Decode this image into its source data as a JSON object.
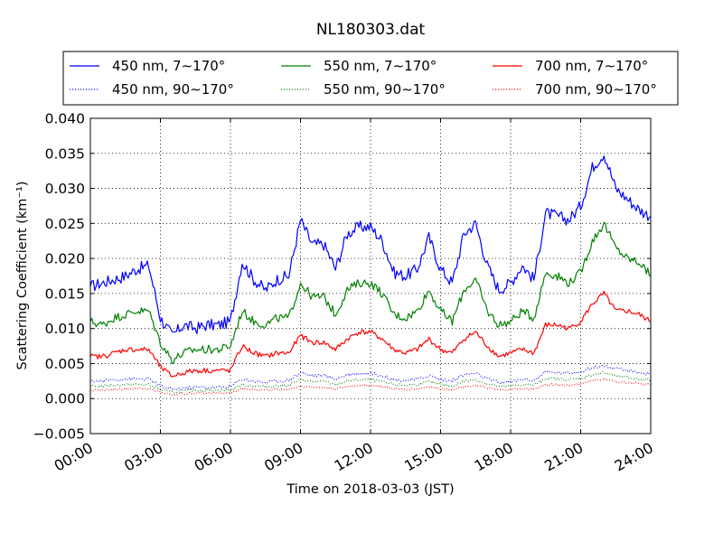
{
  "chart_data": {
    "type": "line",
    "title": "NL180303.dat",
    "xlabel": "Time on 2018-03-03 (JST)",
    "ylabel": "Scattering Coefficient (km⁻¹)",
    "x_unit": "hour of day",
    "xlim": [
      0,
      24
    ],
    "ylim": [
      -0.005,
      0.04
    ],
    "x_ticks": [
      0,
      3,
      6,
      9,
      12,
      15,
      18,
      21,
      24
    ],
    "x_tick_labels": [
      "00:00",
      "03:00",
      "06:00",
      "09:00",
      "12:00",
      "15:00",
      "18:00",
      "21:00",
      "24:00"
    ],
    "y_ticks": [
      -0.005,
      0.0,
      0.005,
      0.01,
      0.015,
      0.02,
      0.025,
      0.03,
      0.035,
      0.04
    ],
    "y_tick_labels": [
      "−0.005",
      "0.000",
      "0.005",
      "0.010",
      "0.015",
      "0.020",
      "0.025",
      "0.030",
      "0.035",
      "0.040"
    ],
    "grid": true,
    "legend_position": "top, above plot",
    "x": [
      0,
      0.5,
      1,
      1.5,
      2,
      2.5,
      3,
      3.5,
      4,
      4.5,
      5,
      5.5,
      6,
      6.5,
      7,
      7.5,
      8,
      8.5,
      9,
      9.5,
      10,
      10.5,
      11,
      11.5,
      12,
      12.5,
      13,
      13.5,
      14,
      14.5,
      15,
      15.5,
      16,
      16.5,
      17,
      17.5,
      18,
      18.5,
      19,
      19.5,
      20,
      20.5,
      21,
      21.5,
      22,
      22.5,
      23,
      23.5,
      24
    ],
    "series": [
      {
        "name": "450 nm, 7∼170°",
        "color": "#0000ff",
        "style": "solid",
        "values": [
          0.016,
          0.0165,
          0.017,
          0.0175,
          0.0185,
          0.019,
          0.0115,
          0.009,
          0.0105,
          0.01,
          0.0105,
          0.0105,
          0.011,
          0.0195,
          0.017,
          0.0155,
          0.017,
          0.0175,
          0.0255,
          0.022,
          0.022,
          0.0185,
          0.0235,
          0.0245,
          0.0245,
          0.0225,
          0.018,
          0.0175,
          0.0185,
          0.023,
          0.0185,
          0.0165,
          0.0235,
          0.025,
          0.019,
          0.0155,
          0.0165,
          0.019,
          0.017,
          0.0265,
          0.026,
          0.0255,
          0.0275,
          0.033,
          0.035,
          0.03,
          0.0285,
          0.027,
          0.026
        ]
      },
      {
        "name": "550 nm, 7∼170°",
        "color": "#008000",
        "style": "solid",
        "values": [
          0.011,
          0.0105,
          0.0115,
          0.012,
          0.0125,
          0.0125,
          0.008,
          0.0055,
          0.0065,
          0.007,
          0.007,
          0.007,
          0.0075,
          0.0125,
          0.011,
          0.0105,
          0.0115,
          0.0115,
          0.0165,
          0.0145,
          0.0145,
          0.012,
          0.0155,
          0.0165,
          0.0165,
          0.015,
          0.012,
          0.0115,
          0.0125,
          0.0155,
          0.0125,
          0.011,
          0.0155,
          0.017,
          0.0125,
          0.0105,
          0.011,
          0.0125,
          0.0115,
          0.018,
          0.0175,
          0.0165,
          0.018,
          0.0225,
          0.025,
          0.0215,
          0.02,
          0.0195,
          0.0175
        ]
      },
      {
        "name": "700 nm, 7∼170°",
        "color": "#ff0000",
        "style": "solid",
        "values": [
          0.006,
          0.006,
          0.0065,
          0.007,
          0.007,
          0.007,
          0.0045,
          0.0032,
          0.0037,
          0.004,
          0.004,
          0.004,
          0.004,
          0.0075,
          0.0065,
          0.006,
          0.0065,
          0.0065,
          0.009,
          0.008,
          0.008,
          0.007,
          0.0085,
          0.0095,
          0.0095,
          0.0085,
          0.007,
          0.0065,
          0.007,
          0.0085,
          0.007,
          0.0065,
          0.0085,
          0.0095,
          0.0075,
          0.006,
          0.0065,
          0.007,
          0.0065,
          0.0105,
          0.0105,
          0.01,
          0.011,
          0.0135,
          0.015,
          0.0125,
          0.0125,
          0.012,
          0.011
        ]
      },
      {
        "name": "450 nm, 90∼170°",
        "color": "#0000ff",
        "style": "dotted",
        "values": [
          0.0025,
          0.0025,
          0.0027,
          0.0028,
          0.0028,
          0.0028,
          0.0018,
          0.0013,
          0.0015,
          0.0016,
          0.0016,
          0.0016,
          0.0017,
          0.0028,
          0.0025,
          0.0023,
          0.0025,
          0.0026,
          0.0037,
          0.0033,
          0.0033,
          0.0028,
          0.0034,
          0.0036,
          0.0036,
          0.0033,
          0.0027,
          0.0026,
          0.0027,
          0.0033,
          0.0027,
          0.0025,
          0.0034,
          0.0036,
          0.0028,
          0.0023,
          0.0024,
          0.0028,
          0.0026,
          0.0038,
          0.0037,
          0.0036,
          0.0039,
          0.0044,
          0.0047,
          0.0042,
          0.004,
          0.0037,
          0.0035
        ]
      },
      {
        "name": "550 nm, 90∼170°",
        "color": "#008000",
        "style": "dotted",
        "values": [
          0.0018,
          0.0018,
          0.0019,
          0.002,
          0.002,
          0.002,
          0.0013,
          0.0009,
          0.0011,
          0.0012,
          0.0012,
          0.0012,
          0.0012,
          0.002,
          0.0018,
          0.0017,
          0.0018,
          0.0019,
          0.0027,
          0.0024,
          0.0024,
          0.002,
          0.0025,
          0.0027,
          0.0027,
          0.0024,
          0.002,
          0.0019,
          0.002,
          0.0024,
          0.002,
          0.0018,
          0.0025,
          0.0027,
          0.0021,
          0.0017,
          0.0018,
          0.002,
          0.0019,
          0.0029,
          0.0028,
          0.0027,
          0.0029,
          0.0034,
          0.0037,
          0.0032,
          0.003,
          0.0028,
          0.0026
        ]
      },
      {
        "name": "700 nm, 90∼170°",
        "color": "#ff0000",
        "style": "dotted",
        "values": [
          0.0012,
          0.0012,
          0.0013,
          0.0014,
          0.0014,
          0.0014,
          0.0009,
          0.0006,
          0.0007,
          0.0008,
          0.0008,
          0.0008,
          0.0008,
          0.0014,
          0.0013,
          0.0012,
          0.0013,
          0.0013,
          0.0018,
          0.0016,
          0.0016,
          0.0014,
          0.0017,
          0.0019,
          0.0019,
          0.0017,
          0.0014,
          0.0013,
          0.0014,
          0.0017,
          0.0014,
          0.0013,
          0.0017,
          0.0019,
          0.0015,
          0.0012,
          0.0013,
          0.0014,
          0.0013,
          0.002,
          0.002,
          0.0019,
          0.0021,
          0.0025,
          0.0028,
          0.0024,
          0.0023,
          0.0021,
          0.002
        ]
      }
    ]
  }
}
